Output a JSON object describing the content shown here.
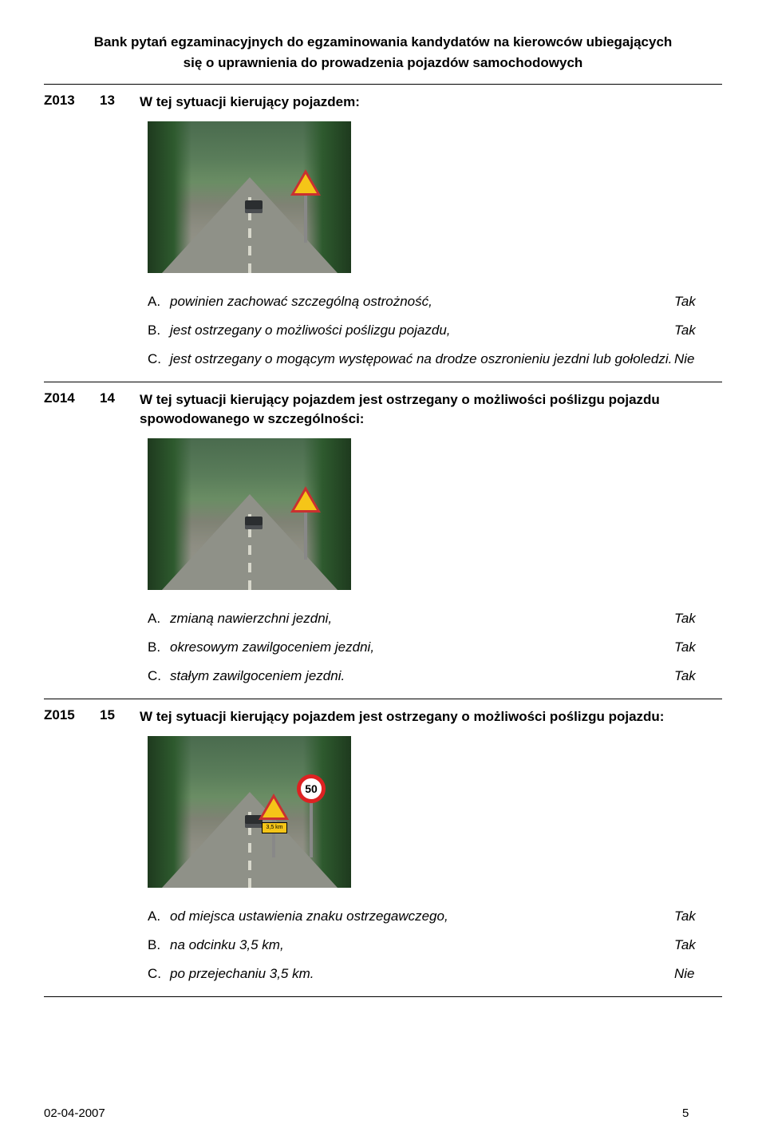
{
  "header": {
    "line1": "Bank pytań egzaminacyjnych do egzaminowania kandydatów na kierowców ubiegających",
    "line2": "się o uprawnienia do prowadzenia pojazdów samochodowych"
  },
  "questions": [
    {
      "code": "Z013",
      "num": "13",
      "text": "W tej sytuacji kierujący pojazdem:",
      "image": {
        "variant": "single-warn"
      },
      "answers": [
        {
          "letter": "A.",
          "text": "powinien zachować szczególną ostrożność,",
          "result": "Tak"
        },
        {
          "letter": "B.",
          "text": "jest ostrzegany o możliwości poślizgu pojazdu,",
          "result": "Tak"
        },
        {
          "letter": "C.",
          "text": "jest ostrzegany o mogącym występować na drodze oszronieniu jezdni lub gołoledzi.",
          "result": "Nie"
        }
      ]
    },
    {
      "code": "Z014",
      "num": "14",
      "text": "W tej sytuacji kierujący pojazdem jest ostrzegany o możliwości poślizgu pojazdu spowodowanego w szczególności:",
      "image": {
        "variant": "single-warn"
      },
      "answers": [
        {
          "letter": "A.",
          "text": "zmianą nawierzchni jezdni,",
          "result": "Tak"
        },
        {
          "letter": "B.",
          "text": "okresowym zawilgoceniem jezdni,",
          "result": "Tak"
        },
        {
          "letter": "C.",
          "text": "stałym zawilgoceniem jezdni.",
          "result": "Tak"
        }
      ]
    },
    {
      "code": "Z015",
      "num": "15",
      "text": "W tej sytuacji kierujący pojazdem jest ostrzegany o możliwości poślizgu pojazdu:",
      "image": {
        "variant": "warn-speed",
        "speed": "50",
        "sub": "3,5 km"
      },
      "answers": [
        {
          "letter": "A.",
          "text": "od miejsca ustawienia znaku ostrzegawczego,",
          "result": "Tak"
        },
        {
          "letter": "B.",
          "text": "na odcinku 3,5 km,",
          "result": "Tak"
        },
        {
          "letter": "C.",
          "text": "po przejechaniu 3,5 km.",
          "result": "Nie"
        }
      ]
    }
  ],
  "footer": {
    "date": "02-04-2007",
    "page": "5"
  }
}
